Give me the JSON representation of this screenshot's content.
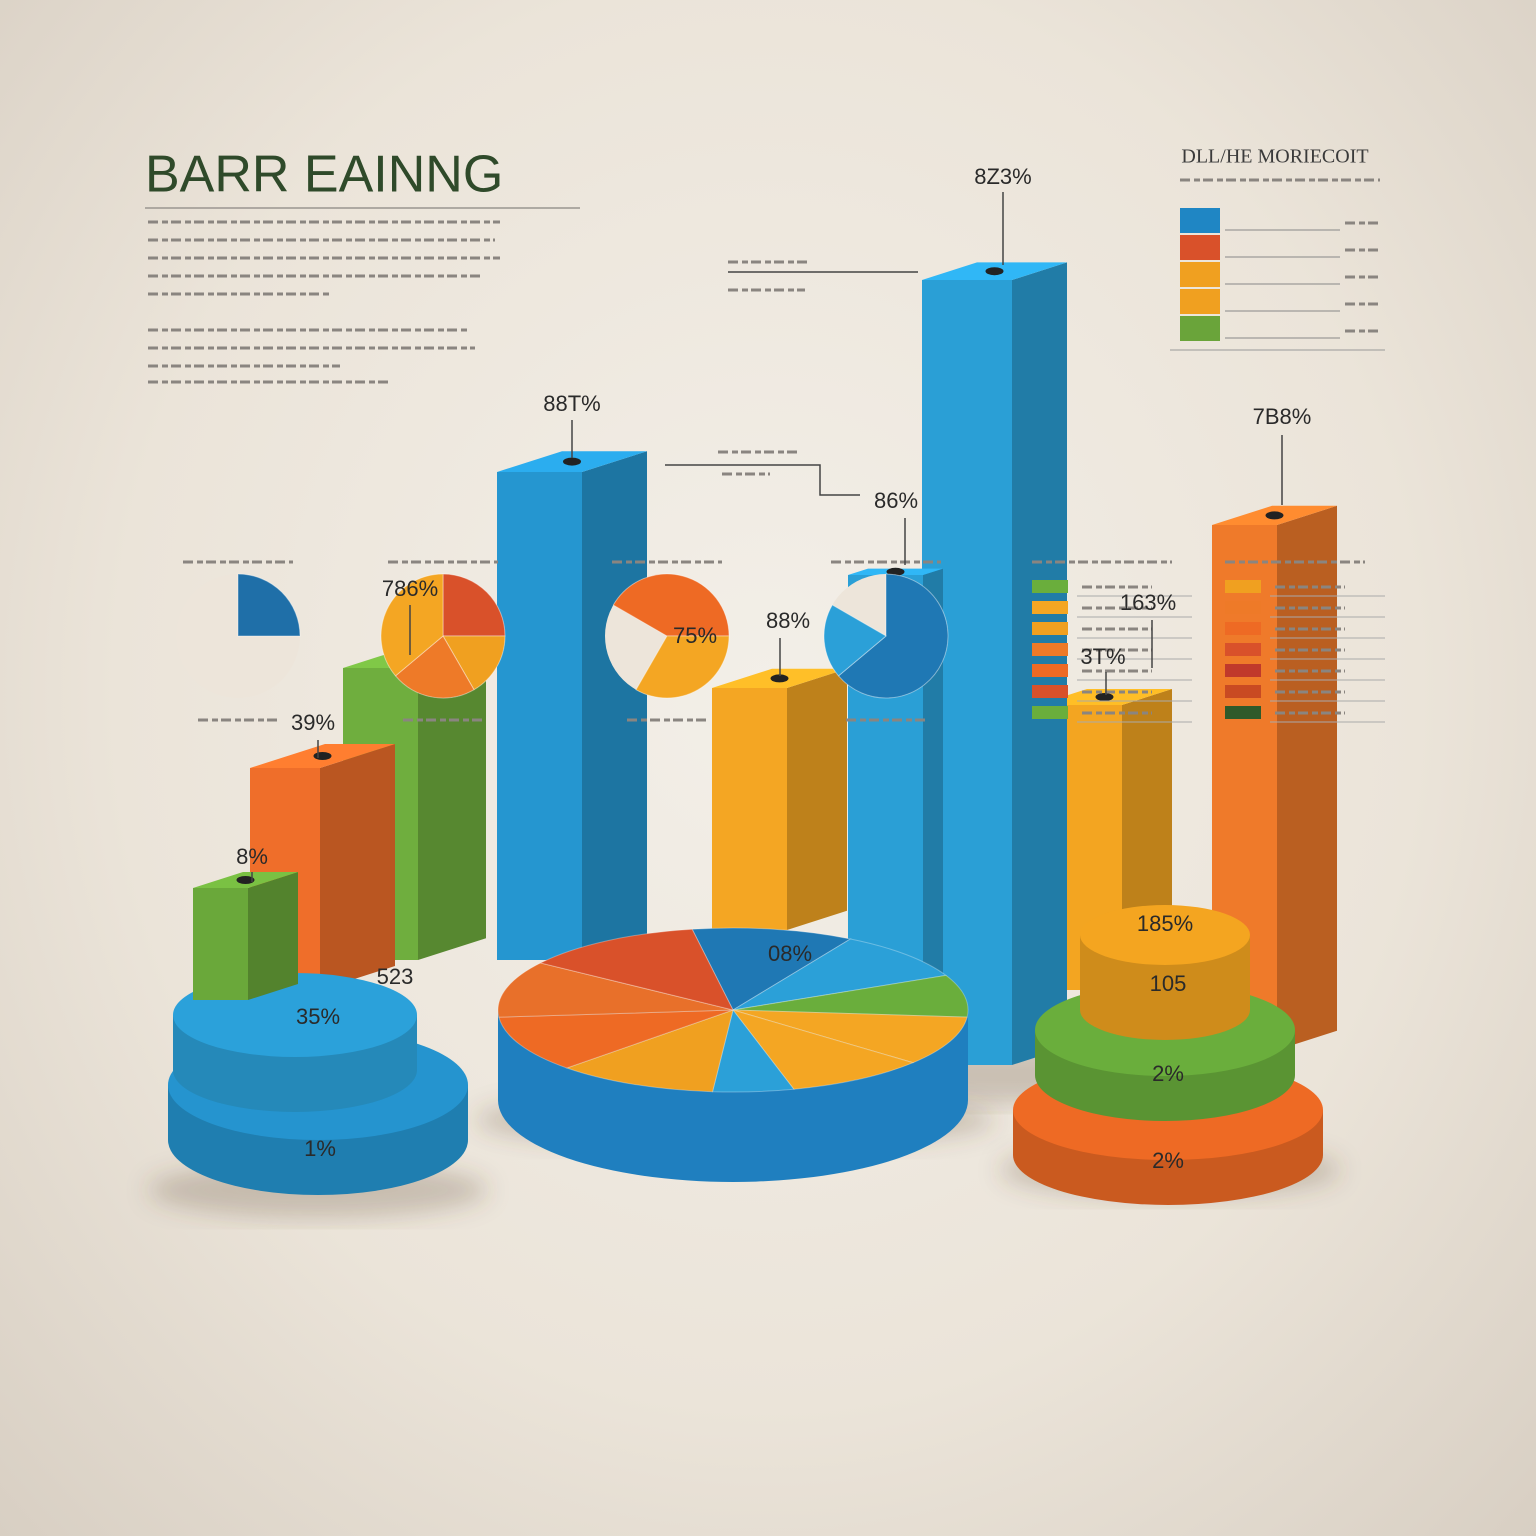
{
  "header": {
    "title": "BARR EAINNG"
  },
  "legend": {
    "title": "DLL/HE MORIECOIT"
  },
  "labels": [
    "8Z3%",
    "88T%",
    "786%",
    "39%",
    "8%",
    "88%",
    "86%",
    "7B8%",
    "163%",
    "3T%",
    "523",
    "35%",
    "1%",
    "08%",
    "185%",
    "105",
    "2%",
    "2%",
    "75%"
  ]
}
